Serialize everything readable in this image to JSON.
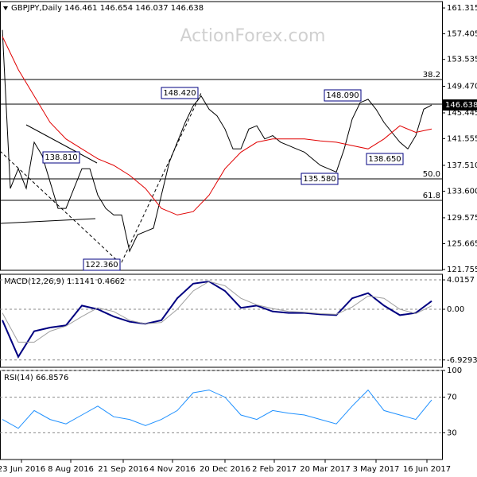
{
  "chart_data": [
    {
      "type": "line",
      "title": "GBPJPY,Daily 146.461 146.654 146.037 146.638",
      "watermark": "ActionForex.com",
      "xlim": [
        -1.5,
        276.5
      ],
      "ylim": [
        121.63,
        162.28
      ],
      "yticks": [
        161.315,
        157.405,
        153.535,
        {
          "value": 149.47,
          "label": "149.470"
        },
        145.445,
        141.555,
        {
          "value": 137.51,
          "label": "137.510"
        },
        {
          "value": 133.6,
          "label": "133.600"
        },
        129.575,
        125.665,
        121.755
      ],
      "series": [
        {
          "name": "Close",
          "color": "#000000",
          "x": [
            0,
            5,
            10,
            15,
            20,
            25,
            30,
            35,
            40,
            45,
            50,
            55,
            60,
            65,
            70,
            75,
            80,
            85,
            90,
            95,
            100,
            105,
            110,
            115,
            120,
            125,
            130,
            135,
            140,
            145,
            150,
            155,
            160,
            165,
            170,
            175,
            180,
            185,
            190,
            195,
            200,
            205,
            210,
            215,
            220,
            225,
            230,
            235,
            240,
            245,
            250,
            255,
            260,
            265,
            270
          ],
          "values": [
            158,
            134,
            137,
            134,
            141,
            139,
            135,
            131,
            131,
            134,
            137,
            137,
            133,
            131,
            130,
            130,
            124.5,
            127,
            127.5,
            128,
            133,
            138,
            141,
            144,
            146.5,
            148,
            146,
            145,
            143,
            140,
            140,
            143,
            143.5,
            141.5,
            142,
            141,
            140.5,
            140,
            139.5,
            138.5,
            137.5,
            137,
            136.5,
            140,
            144.5,
            147,
            147.5,
            146,
            144,
            142.5,
            141,
            140,
            142,
            146,
            146.638
          ]
        },
        {
          "name": "MA",
          "color": "#e00000",
          "x": [
            0,
            10,
            20,
            30,
            40,
            50,
            60,
            70,
            80,
            90,
            100,
            110,
            120,
            130,
            140,
            150,
            160,
            170,
            180,
            190,
            200,
            210,
            220,
            230,
            240,
            250,
            260,
            270
          ],
          "values": [
            157,
            152,
            148,
            144,
            141.5,
            140,
            138.5,
            137.5,
            136,
            134,
            131,
            130,
            130.5,
            133,
            137,
            139.5,
            141,
            141.5,
            141.5,
            141.5,
            141.2,
            141,
            140.5,
            140,
            141.5,
            143.5,
            142.5,
            143
          ]
        }
      ],
      "annotations": [
        "148.420",
        "148.090",
        "138.810",
        "138.650",
        "135.580",
        "122.360"
      ],
      "levels": [
        {
          "label": "38.2",
          "value": 150.5
        },
        {
          "label": "50.0",
          "value": 135.46
        },
        {
          "label": "61.8",
          "value": 132.22
        },
        {
          "value": 146.77
        }
      ]
    },
    {
      "type": "line",
      "title": "MACD(12,26,9) 1.1141 0.4662",
      "xlim": [
        -1.5,
        276.5
      ],
      "ylim": [
        -7.93,
        4.78
      ],
      "yticks": [
        4.0157,
        {
          "value": 0,
          "label": "0.00"
        },
        -6.9293
      ],
      "series": [
        {
          "name": "MACD",
          "color": "#000080",
          "x": [
            0,
            10,
            20,
            30,
            40,
            50,
            60,
            70,
            80,
            90,
            100,
            110,
            120,
            130,
            140,
            150,
            160,
            170,
            180,
            190,
            200,
            210,
            220,
            230,
            240,
            250,
            260,
            270
          ],
          "values": [
            -1.5,
            -6.5,
            -3,
            -2.5,
            -2.2,
            0.5,
            0,
            -1,
            -1.7,
            -2,
            -1.5,
            1.5,
            3.5,
            3.8,
            2.5,
            0.2,
            0.5,
            -0.3,
            -0.5,
            -0.5,
            -0.7,
            -0.8,
            1.5,
            2.2,
            0.5,
            -0.8,
            -0.5,
            1.1141
          ]
        },
        {
          "name": "Signal",
          "color": "#a0a0a0",
          "x": [
            0,
            10,
            20,
            30,
            40,
            50,
            60,
            70,
            80,
            90,
            100,
            110,
            120,
            130,
            140,
            150,
            160,
            170,
            180,
            190,
            200,
            210,
            220,
            230,
            240,
            250,
            260,
            270
          ],
          "values": [
            -0.5,
            -4.5,
            -4.5,
            -3,
            -2.3,
            -1,
            0.2,
            -0.3,
            -1.5,
            -2,
            -1.8,
            0,
            2.5,
            3.8,
            3.2,
            1.5,
            0.6,
            0.1,
            -0.3,
            -0.4,
            -0.6,
            -0.7,
            0.3,
            1.8,
            1.5,
            0,
            -0.6,
            0.4662
          ]
        }
      ]
    },
    {
      "type": "line",
      "title": "RSI(14) 66.8576",
      "xlim": [
        -1.5,
        276.5
      ],
      "ylim": [
        0,
        100
      ],
      "yticks": [
        100,
        70,
        30
      ],
      "xticks": [
        {
          "value": 12,
          "label": "23 Jun 2016"
        },
        {
          "value": 43,
          "label": "8 Aug 2016"
        },
        {
          "value": 76,
          "label": "21 Sep 2016"
        },
        {
          "value": 107,
          "label": "4 Nov 2016"
        },
        {
          "value": 140,
          "label": "20 Dec 2016"
        },
        {
          "value": 171,
          "label": "2 Feb 2017"
        },
        {
          "value": 203,
          "label": "20 Mar 2017"
        },
        {
          "value": 235,
          "label": "3 May 2017"
        },
        {
          "value": 267,
          "label": "16 Jun 2017"
        }
      ],
      "series": [
        {
          "name": "RSI",
          "color": "#1e90ff",
          "x": [
            0,
            10,
            20,
            30,
            40,
            50,
            60,
            70,
            80,
            90,
            100,
            110,
            120,
            130,
            140,
            150,
            160,
            170,
            180,
            190,
            200,
            210,
            220,
            230,
            240,
            250,
            260,
            270
          ],
          "values": [
            45,
            35,
            55,
            45,
            40,
            50,
            60,
            48,
            45,
            38,
            45,
            55,
            75,
            78,
            70,
            50,
            45,
            55,
            52,
            50,
            45,
            40,
            60,
            78,
            55,
            50,
            45,
            66.8576
          ]
        }
      ]
    }
  ]
}
